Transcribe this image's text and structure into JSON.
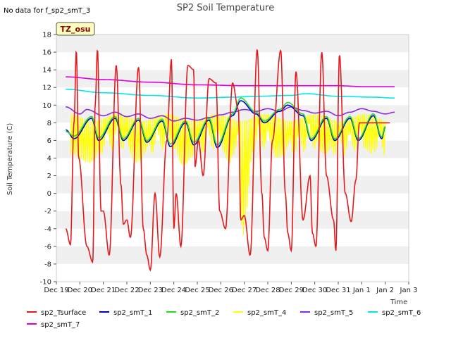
{
  "note": "No data for f_sp2_smT_3",
  "tz_badge": "TZ_osu",
  "chart_data": {
    "type": "line",
    "title": "SP2 Soil Temperature",
    "xlabel": "Time",
    "ylabel": "Soil Temperature (C)",
    "ylim": [
      -10,
      18
    ],
    "yticks": [
      -10,
      -8,
      -6,
      -4,
      -2,
      0,
      2,
      4,
      6,
      8,
      10,
      12,
      14,
      16,
      18
    ],
    "xlim": [
      0,
      15
    ],
    "xticks": [
      {
        "pos": 0,
        "label": "Dec 19"
      },
      {
        "pos": 1,
        "label": "Dec 20"
      },
      {
        "pos": 2,
        "label": "Dec 21"
      },
      {
        "pos": 3,
        "label": "Dec 22"
      },
      {
        "pos": 4,
        "label": "Dec 23"
      },
      {
        "pos": 5,
        "label": "Dec 24"
      },
      {
        "pos": 6,
        "label": "Dec 25"
      },
      {
        "pos": 7,
        "label": "Dec 26"
      },
      {
        "pos": 8,
        "label": "Dec 27"
      },
      {
        "pos": 9,
        "label": "Dec 28"
      },
      {
        "pos": 10,
        "label": "Dec 29"
      },
      {
        "pos": 11,
        "label": "Dec 30"
      },
      {
        "pos": 12,
        "label": "Dec 31"
      },
      {
        "pos": 13,
        "label": "Jan 1"
      },
      {
        "pos": 14,
        "label": "Jan 2"
      },
      {
        "pos": 15,
        "label": "Jan 3"
      }
    ],
    "grid": "horizontal bands",
    "legend": "bottom",
    "series": [
      {
        "name": "sp2_Tsurface",
        "color": "#e41a1c",
        "style": "surface",
        "x": [
          0.4,
          0.6,
          0.75,
          0.85,
          0.95,
          1.3,
          1.55,
          1.65,
          1.75,
          1.9,
          2.0,
          2.25,
          2.55,
          2.75,
          2.85,
          3.0,
          3.15,
          3.5,
          3.7,
          3.85,
          4.0,
          4.2,
          4.4,
          4.7,
          4.9,
          5.0,
          5.1,
          5.3,
          5.6,
          5.85,
          5.9,
          6.05,
          6.25,
          6.5,
          6.8,
          6.95,
          7.2,
          7.5,
          7.75,
          7.85,
          8.0,
          8.25,
          8.55,
          8.75,
          8.85,
          9.0,
          9.2,
          9.55,
          9.75,
          9.85,
          10.0,
          10.2,
          10.5,
          10.8,
          10.9,
          11.05,
          11.3,
          11.5,
          11.8,
          11.9,
          12.05,
          12.3,
          12.55,
          12.75,
          12.9,
          13.05,
          13.3,
          13.55,
          13.8,
          13.9,
          14.05,
          14.2
        ],
        "y": [
          -4,
          -5.8,
          8,
          16.2,
          4,
          -6,
          -7.8,
          10,
          16.3,
          -2,
          -2,
          -7,
          14.5,
          1,
          -3.5,
          -3,
          -5,
          14.3,
          -4,
          -7,
          -8.7,
          0,
          -7.2,
          6,
          15.2,
          -4,
          0,
          -6,
          14.5,
          14,
          3,
          6,
          2,
          13,
          12.5,
          -2,
          -4,
          12.5,
          9.5,
          -3,
          -2.5,
          -7,
          16.3,
          0,
          -5,
          -6.5,
          6,
          16.2,
          0,
          -4.5,
          -6.5,
          13.8,
          -3,
          2,
          -4.5,
          -6,
          16,
          2,
          -3,
          -6.5,
          15.7,
          0,
          -3.2,
          1.5,
          8,
          8,
          8,
          8,
          8,
          8,
          8,
          8
        ]
      },
      {
        "name": "sp2_smT_1",
        "color": "#0000cc",
        "style": "diurnal",
        "x": [
          0.4,
          0.75,
          1.5,
          1.8,
          2.5,
          2.85,
          3.5,
          3.85,
          4.5,
          4.85,
          5.5,
          5.85,
          6.5,
          6.85,
          7.5,
          7.85,
          8.5,
          8.85,
          9.5,
          9.85,
          10.5,
          10.85,
          11.5,
          11.85,
          12.5,
          12.85,
          13.5,
          13.85,
          14.0
        ],
        "y": [
          7.2,
          6.2,
          8.5,
          6.0,
          8.5,
          6.0,
          8.3,
          5.8,
          8.2,
          5.3,
          8.0,
          5.5,
          8.3,
          5.2,
          8.8,
          10.5,
          9.0,
          8.0,
          9.3,
          10.0,
          8.8,
          6.0,
          8.5,
          6.0,
          8.5,
          6.0,
          8.8,
          6.2,
          7.5
        ]
      },
      {
        "name": "sp2_smT_2",
        "color": "#22dd22",
        "style": "diurnal",
        "x": [
          0.4,
          0.75,
          1.5,
          1.8,
          2.5,
          2.85,
          3.5,
          3.85,
          4.5,
          4.85,
          5.5,
          5.85,
          6.5,
          6.85,
          7.5,
          7.85,
          8.5,
          8.85,
          9.5,
          9.85,
          10.5,
          10.85,
          11.5,
          11.85,
          12.5,
          12.85,
          13.5,
          13.85,
          14.0
        ],
        "y": [
          7.0,
          6.5,
          8.7,
          6.3,
          8.7,
          6.2,
          8.5,
          6.0,
          8.4,
          5.6,
          8.2,
          5.8,
          8.5,
          5.5,
          9.0,
          10.8,
          9.2,
          8.2,
          9.5,
          10.3,
          9.0,
          6.2,
          8.7,
          6.2,
          8.7,
          6.2,
          9.0,
          6.4,
          7.6
        ]
      },
      {
        "name": "sp2_smT_4",
        "color": "#ffff00",
        "style": "spiky",
        "x": [
          0.6,
          1.4,
          2.6,
          3.4,
          4.6,
          5.4,
          6.6,
          7.4,
          7.8,
          7.9,
          8.6,
          9.4,
          10.6,
          11.4,
          12.6,
          13.4,
          13.8,
          14.0
        ],
        "y": [
          4.5,
          3.5,
          8.5,
          3.5,
          8.7,
          3.2,
          8.5,
          3.5,
          10,
          -5,
          10,
          4.0,
          8.5,
          4.5,
          8.8,
          4.5,
          9.5,
          4.0
        ]
      },
      {
        "name": "sp2_smT_5",
        "color": "#8a2be2",
        "style": "smooth",
        "x": [
          0.4,
          1.0,
          1.3,
          2.0,
          2.5,
          3.0,
          3.5,
          4.0,
          4.5,
          5.0,
          5.5,
          6.0,
          6.5,
          7.0,
          7.5,
          8.0,
          8.5,
          9.0,
          9.5,
          10.0,
          10.5,
          11.0,
          11.5,
          12.0,
          12.5,
          13.0,
          13.5,
          14.0,
          14.4
        ],
        "y": [
          9.8,
          9.0,
          9.5,
          8.8,
          9.2,
          8.7,
          9.0,
          8.5,
          8.8,
          8.2,
          8.5,
          8.3,
          8.6,
          8.9,
          9.2,
          9.5,
          9.3,
          9.6,
          9.3,
          9.8,
          9.4,
          9.1,
          9.3,
          8.8,
          9.2,
          9.6,
          9.3,
          9.0,
          9.2
        ]
      },
      {
        "name": "sp2_smT_6",
        "color": "#00e5ee",
        "style": "smooth",
        "x": [
          0.4,
          2.0,
          4.0,
          6.0,
          7.5,
          8.5,
          10.0,
          10.6,
          12.0,
          13.5,
          14.4
        ],
        "y": [
          11.8,
          11.4,
          11.1,
          10.8,
          10.9,
          11.0,
          11.1,
          11.3,
          11.0,
          10.9,
          10.8
        ]
      },
      {
        "name": "sp2_smT_7",
        "color": "#dd00dd",
        "style": "smooth",
        "x": [
          0.4,
          2.0,
          4.0,
          6.0,
          8.0,
          10.0,
          12.0,
          13.0,
          14.4
        ],
        "y": [
          13.2,
          12.9,
          12.6,
          12.3,
          12.2,
          12.2,
          12.2,
          12.1,
          12.1
        ]
      }
    ]
  }
}
